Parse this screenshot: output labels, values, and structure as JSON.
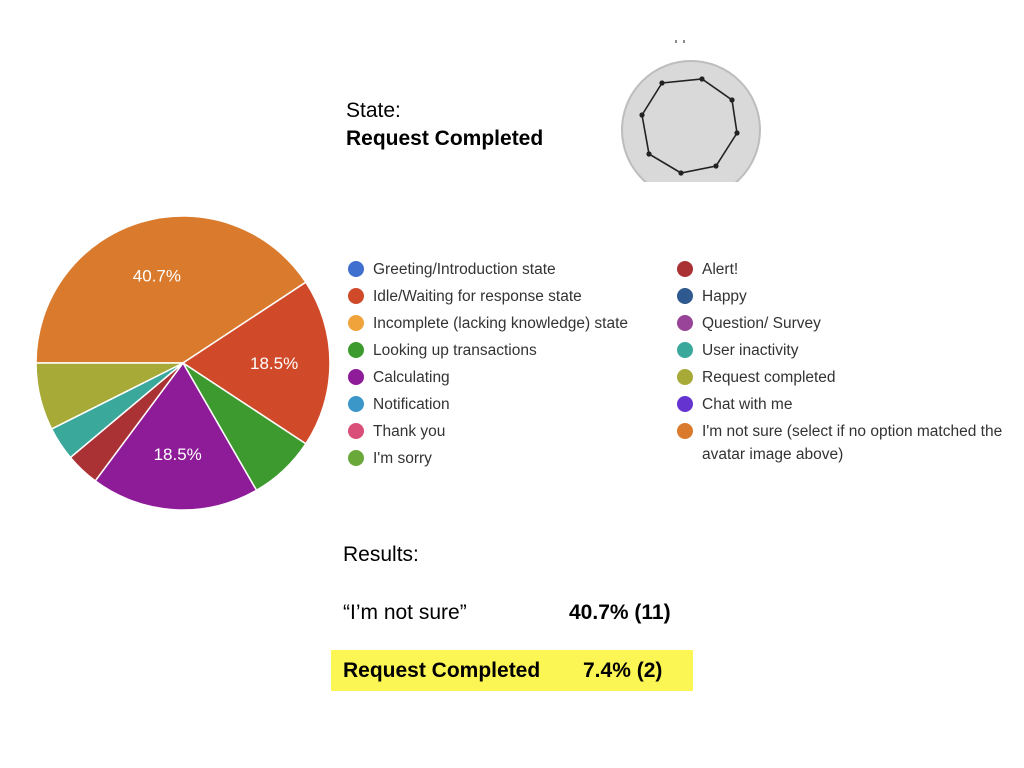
{
  "state": {
    "label": "State:",
    "value": "Request Completed"
  },
  "avatar": {
    "icon": "robot-face-icon"
  },
  "chart_data": {
    "type": "pie",
    "categories": [
      "Greeting/Introduction state",
      "Idle/Waiting for response state",
      "Incomplete (lacking knowledge) state",
      "Looking up transactions",
      "Calculating",
      "Notification",
      "Thank you",
      "I'm sorry",
      "Alert!",
      "Happy",
      "Question/ Survey",
      "User inactivity",
      "Request completed",
      "Chat with me",
      "I'm not sure (select if no option matched the avatar image above)"
    ],
    "colors": [
      "#3f6fcf",
      "#d04a2a",
      "#f0a33a",
      "#3d9a2e",
      "#8e1c98",
      "#3b97c8",
      "#d94f7a",
      "#6aa83a",
      "#aa3234",
      "#2f5a8f",
      "#994499",
      "#3ba89c",
      "#a8aa38",
      "#6433d0",
      "#d97a2c"
    ],
    "values": [
      0,
      18.5,
      0,
      7.4,
      18.5,
      0,
      0,
      0,
      3.7,
      0,
      0,
      3.7,
      7.4,
      0,
      40.7
    ],
    "data_labels": {
      "1": "18.5%",
      "4": "18.5%",
      "14": "40.7%"
    },
    "legend_position": "right"
  },
  "results": {
    "title": "Results:",
    "row1": {
      "label": "“I’m not sure”",
      "value": "40.7% (11)"
    },
    "row2": {
      "label": "Request Completed",
      "value": "7.4% (2)"
    },
    "highlight_color": "#fbf653"
  }
}
